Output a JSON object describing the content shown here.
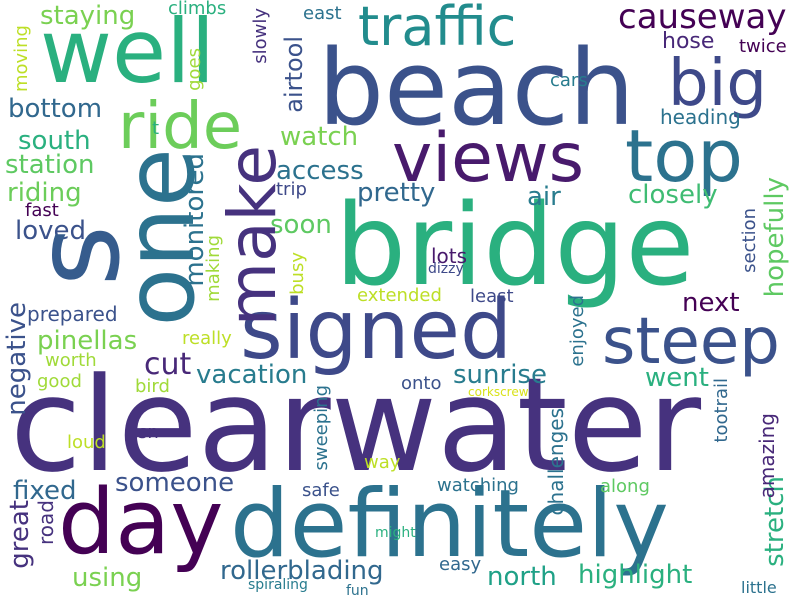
{
  "words": [
    {
      "text": "clearwater",
      "color": "#46327e"
    },
    {
      "text": "bridge",
      "color": "#2ab07f"
    },
    {
      "text": "beach",
      "color": "#3b528b"
    },
    {
      "text": "definitely",
      "color": "#2c728e"
    },
    {
      "text": "s",
      "color": "#365c8d"
    },
    {
      "text": "one",
      "color": "#2c728e"
    },
    {
      "text": "well",
      "color": "#2ab07f"
    },
    {
      "text": "signed",
      "color": "#3e4989"
    },
    {
      "text": "day",
      "color": "#440154"
    },
    {
      "text": "views",
      "color": "#481a6c"
    },
    {
      "text": "top",
      "color": "#2c728e"
    },
    {
      "text": "make",
      "color": "#46327e"
    },
    {
      "text": "traffic",
      "color": "#228c8d"
    },
    {
      "text": "steep",
      "color": "#3b528b"
    },
    {
      "text": "ride",
      "color": "#6ccd5a"
    },
    {
      "text": "big",
      "color": "#3e4989"
    },
    {
      "text": "causeway",
      "color": "#440154"
    },
    {
      "text": "pretty",
      "color": "#31688e"
    },
    {
      "text": "access",
      "color": "#2c728e"
    },
    {
      "text": "sunrise",
      "color": "#287c8e"
    },
    {
      "text": "vacation",
      "color": "#287c8e"
    },
    {
      "text": "rollerblading",
      "color": "#31688e"
    },
    {
      "text": "highlight",
      "color": "#2ab07f"
    },
    {
      "text": "north",
      "color": "#1fa187"
    },
    {
      "text": "someone",
      "color": "#3b528b"
    },
    {
      "text": "closely",
      "color": "#3fbc73"
    },
    {
      "text": "hopefully",
      "color": "#5ec962"
    },
    {
      "text": "next",
      "color": "#440154"
    },
    {
      "text": "went",
      "color": "#2ab07f"
    },
    {
      "text": "air",
      "color": "#287c8e"
    },
    {
      "text": "cut",
      "color": "#482878"
    },
    {
      "text": "monitored",
      "color": "#2c728e"
    },
    {
      "text": "staying",
      "color": "#7ad151"
    },
    {
      "text": "bottom",
      "color": "#31688e"
    },
    {
      "text": "south",
      "color": "#2ab07f"
    },
    {
      "text": "station",
      "color": "#5ec962"
    },
    {
      "text": "riding",
      "color": "#6ccd5a"
    },
    {
      "text": "loved",
      "color": "#3b528b"
    },
    {
      "text": "pinellas",
      "color": "#7ad151"
    },
    {
      "text": "prepared",
      "color": "#3b528b"
    },
    {
      "text": "negative",
      "color": "#3b528b"
    },
    {
      "text": "great",
      "color": "#46327e"
    },
    {
      "text": "fixed",
      "color": "#31688e"
    },
    {
      "text": "using",
      "color": "#7ad151"
    },
    {
      "text": "road",
      "color": "#46327e"
    },
    {
      "text": "hose",
      "color": "#482878"
    },
    {
      "text": "heading",
      "color": "#2c728e"
    },
    {
      "text": "watch",
      "color": "#7ad151"
    },
    {
      "text": "airtool",
      "color": "#3b528b"
    },
    {
      "text": "soon",
      "color": "#5ec962"
    },
    {
      "text": "lots",
      "color": "#481a6c"
    },
    {
      "text": "watching",
      "color": "#2c728e"
    },
    {
      "text": "challenges",
      "color": "#2c728e"
    },
    {
      "text": "enjoyed",
      "color": "#2c728e"
    },
    {
      "text": "stretch",
      "color": "#2ab07f"
    },
    {
      "text": "amazing",
      "color": "#482878"
    },
    {
      "text": "tootrail",
      "color": "#31688e"
    },
    {
      "text": "section",
      "color": "#3b528b"
    },
    {
      "text": "extended",
      "color": "#bddf26"
    },
    {
      "text": "least",
      "color": "#3e4989"
    },
    {
      "text": "onto",
      "color": "#3b528b"
    },
    {
      "text": "safe",
      "color": "#3b528b"
    },
    {
      "text": "easy",
      "color": "#31688e"
    },
    {
      "text": "along",
      "color": "#5ec962"
    },
    {
      "text": "way",
      "color": "#bddf26"
    },
    {
      "text": "sweeping",
      "color": "#2c728e"
    },
    {
      "text": "isn",
      "color": "#46327e"
    },
    {
      "text": "loud",
      "color": "#bddf26"
    },
    {
      "text": "good",
      "color": "#a0da39"
    },
    {
      "text": "worth",
      "color": "#a0da39"
    },
    {
      "text": "bird",
      "color": "#a0da39"
    },
    {
      "text": "really",
      "color": "#bddf26"
    },
    {
      "text": "busy",
      "color": "#bddf26"
    },
    {
      "text": "making",
      "color": "#a0da39"
    },
    {
      "text": "dizzy",
      "color": "#3e4989"
    },
    {
      "text": "trip",
      "color": "#3e4989"
    },
    {
      "text": "fast",
      "color": "#440154"
    },
    {
      "text": "climbs",
      "color": "#2ab07f"
    },
    {
      "text": "goes",
      "color": "#a0da39"
    },
    {
      "text": "slowly",
      "color": "#46327e"
    },
    {
      "text": "east",
      "color": "#2c728e"
    },
    {
      "text": "twice",
      "color": "#440154"
    },
    {
      "text": "cars",
      "color": "#287c8e"
    },
    {
      "text": "moving",
      "color": "#bddf26"
    },
    {
      "text": "t",
      "color": "#2ab07f"
    },
    {
      "text": "corkscrew",
      "color": "#d8e219"
    },
    {
      "text": "might",
      "color": "#2ab07f"
    },
    {
      "text": "spiraling",
      "color": "#287c8e"
    },
    {
      "text": "fun",
      "color": "#2c728e"
    },
    {
      "text": "little",
      "color": "#2c728e"
    }
  ]
}
